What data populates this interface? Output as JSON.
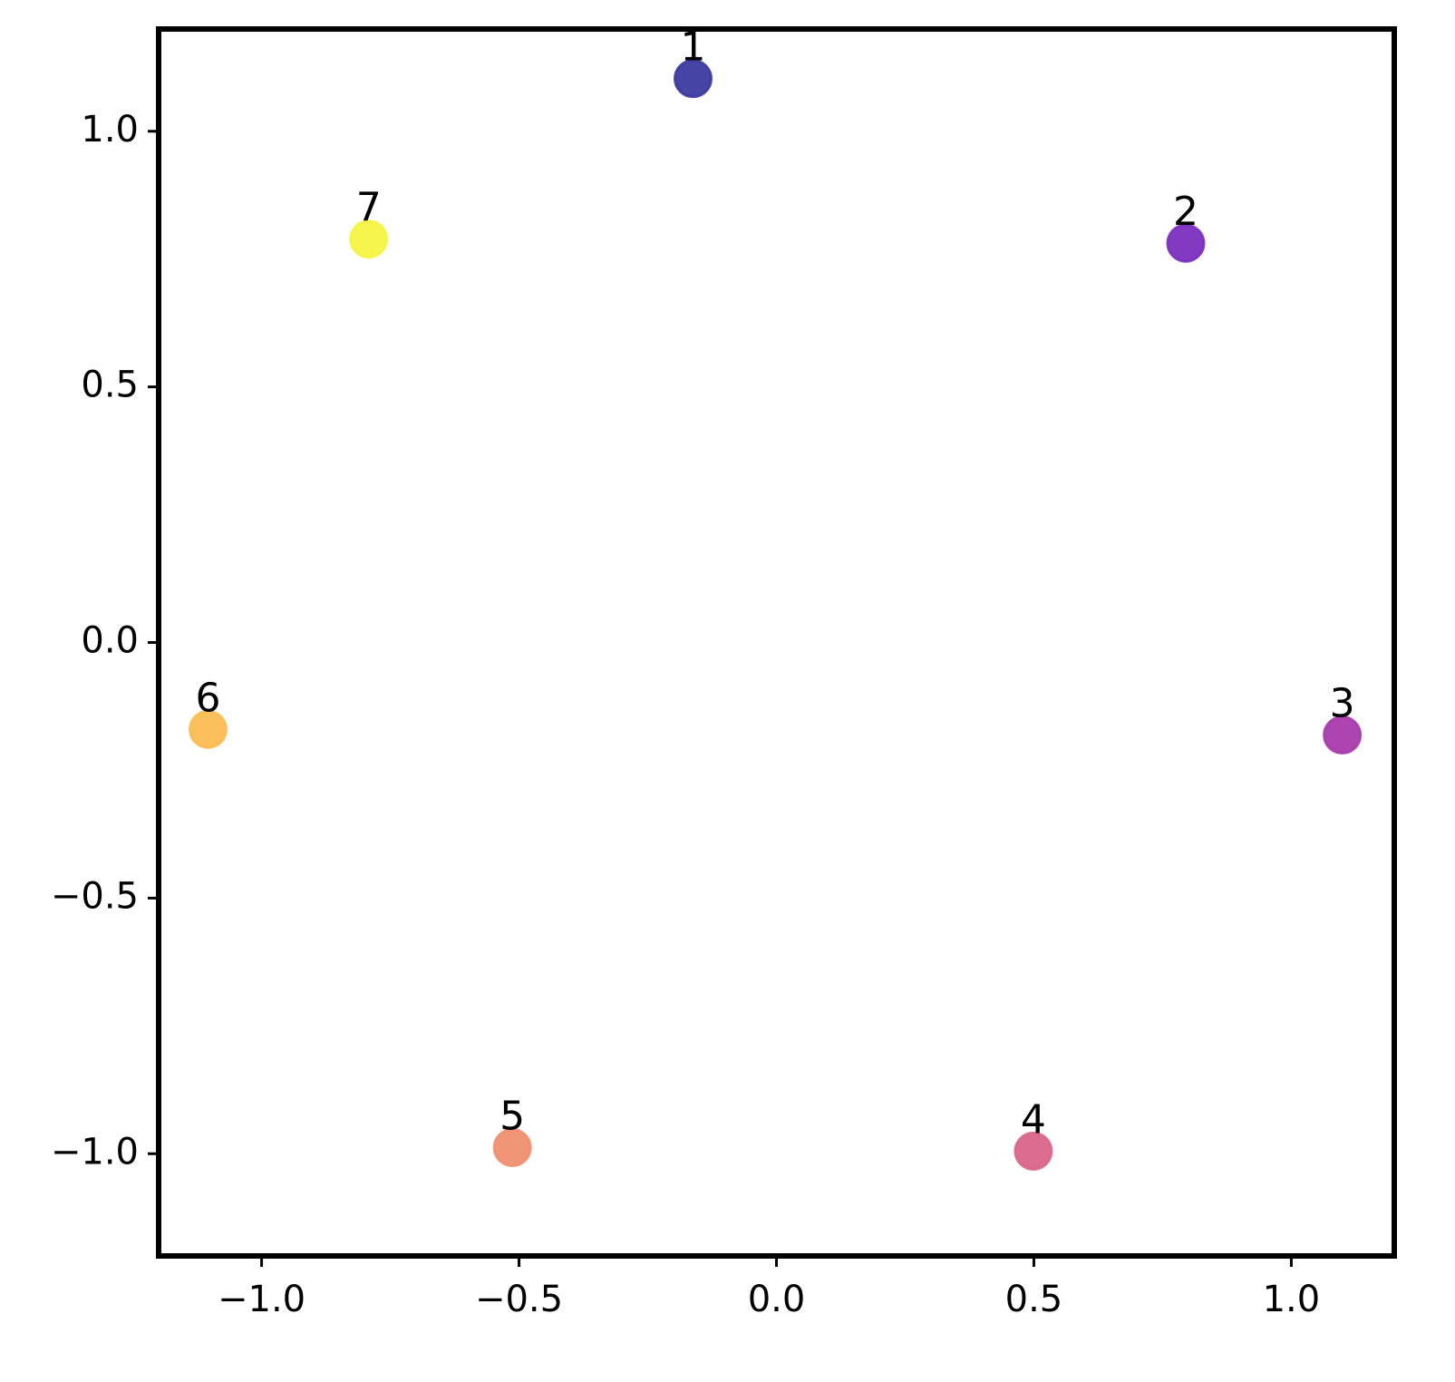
{
  "chart_data": {
    "type": "scatter",
    "x": [
      -0.162,
      0.795,
      1.099,
      0.499,
      -0.513,
      -1.104,
      -0.792
    ],
    "values": [
      1.103,
      0.781,
      -0.181,
      -0.995,
      -0.988,
      -0.17,
      0.789
    ],
    "labels": [
      "1",
      "2",
      "3",
      "4",
      "5",
      "6",
      "7"
    ],
    "colors": [
      "#3c3a9f",
      "#7b2fbf",
      "#a93bad",
      "#d9668a",
      "#f08f70",
      "#fbbd52",
      "#f4f443"
    ],
    "xlim": [
      -1.2,
      1.2
    ],
    "ylim": [
      -1.2,
      1.2
    ],
    "xticks": [
      {
        "value": -1,
        "label": "−1.0"
      },
      {
        "value": -0.5,
        "label": "−0.5"
      },
      {
        "value": 0,
        "label": "0.0"
      },
      0.5,
      {
        "value": 1,
        "label": "1.0"
      }
    ],
    "yticks": [
      {
        "value": -1,
        "label": "−1.0"
      },
      {
        "value": -0.5,
        "label": "−0.5"
      },
      {
        "value": 0,
        "label": "0.0"
      },
      0.5,
      {
        "value": 1,
        "label": "1.0"
      }
    ],
    "grid": false
  }
}
